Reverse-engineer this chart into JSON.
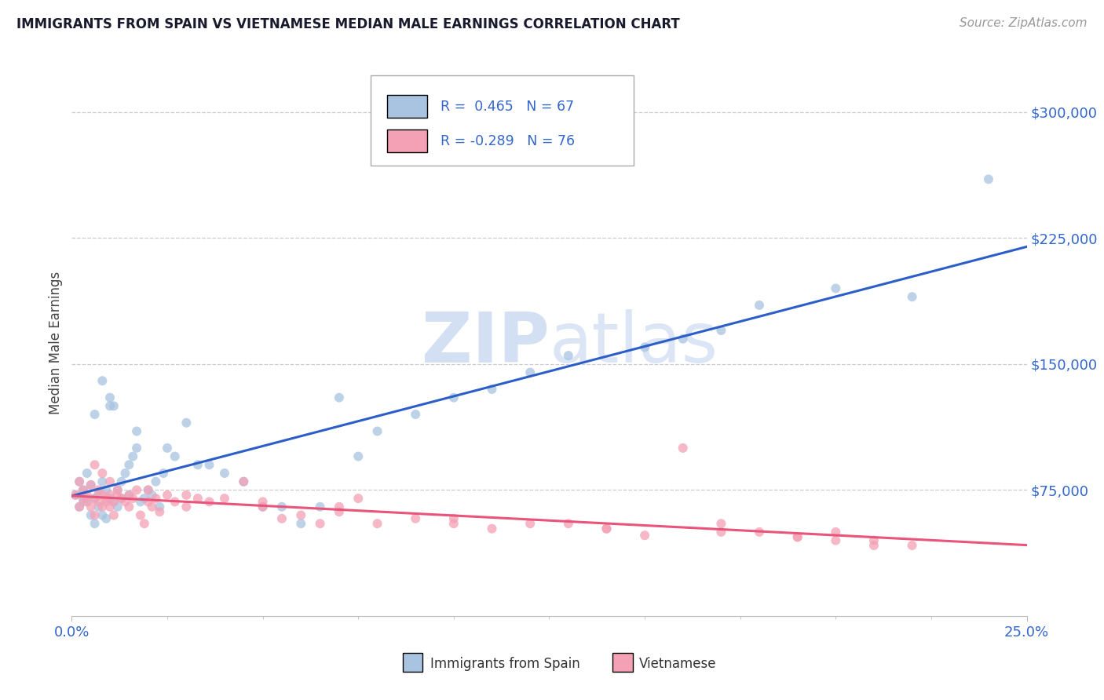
{
  "title": "IMMIGRANTS FROM SPAIN VS VIETNAMESE MEDIAN MALE EARNINGS CORRELATION CHART",
  "source": "Source: ZipAtlas.com",
  "ylabel": "Median Male Earnings",
  "xlim_min": 0.0,
  "xlim_max": 0.25,
  "ylim_min": 0,
  "ylim_max": 325000,
  "yticks": [
    75000,
    150000,
    225000,
    300000
  ],
  "ytick_labels": [
    "$75,000",
    "$150,000",
    "$225,000",
    "$300,000"
  ],
  "blue_R": 0.465,
  "blue_N": 67,
  "pink_R": -0.289,
  "pink_N": 76,
  "blue_color": "#A8C4E0",
  "pink_color": "#F4A0B5",
  "blue_line_color": "#2B5FC7",
  "pink_line_color": "#E8547A",
  "axis_label_color": "#3366CC",
  "title_color": "#1a1a2e",
  "watermark_text": "ZIPatlas",
  "blue_label": "Immigrants from Spain",
  "pink_label": "Vietnamese",
  "blue_x": [
    0.001,
    0.002,
    0.002,
    0.003,
    0.003,
    0.004,
    0.004,
    0.005,
    0.005,
    0.006,
    0.006,
    0.007,
    0.007,
    0.008,
    0.008,
    0.009,
    0.009,
    0.01,
    0.01,
    0.011,
    0.011,
    0.012,
    0.012,
    0.013,
    0.013,
    0.014,
    0.015,
    0.015,
    0.016,
    0.017,
    0.018,
    0.019,
    0.02,
    0.021,
    0.022,
    0.023,
    0.024,
    0.025,
    0.027,
    0.03,
    0.033,
    0.036,
    0.04,
    0.045,
    0.05,
    0.055,
    0.06,
    0.065,
    0.07,
    0.075,
    0.08,
    0.09,
    0.1,
    0.11,
    0.12,
    0.13,
    0.15,
    0.16,
    0.17,
    0.18,
    0.2,
    0.22,
    0.24,
    0.006,
    0.008,
    0.01,
    0.017
  ],
  "blue_y": [
    72000,
    65000,
    80000,
    68000,
    75000,
    70000,
    85000,
    60000,
    78000,
    55000,
    70000,
    65000,
    72000,
    60000,
    80000,
    58000,
    75000,
    130000,
    70000,
    125000,
    68000,
    75000,
    65000,
    80000,
    70000,
    85000,
    90000,
    72000,
    95000,
    100000,
    68000,
    70000,
    75000,
    72000,
    80000,
    65000,
    85000,
    100000,
    95000,
    115000,
    90000,
    90000,
    85000,
    80000,
    65000,
    65000,
    55000,
    65000,
    130000,
    95000,
    110000,
    120000,
    130000,
    135000,
    145000,
    155000,
    160000,
    165000,
    170000,
    185000,
    195000,
    190000,
    260000,
    120000,
    140000,
    125000,
    110000
  ],
  "pink_x": [
    0.001,
    0.002,
    0.002,
    0.003,
    0.003,
    0.004,
    0.004,
    0.005,
    0.005,
    0.006,
    0.006,
    0.007,
    0.007,
    0.008,
    0.008,
    0.009,
    0.009,
    0.01,
    0.01,
    0.011,
    0.011,
    0.012,
    0.012,
    0.013,
    0.014,
    0.015,
    0.015,
    0.016,
    0.017,
    0.018,
    0.019,
    0.02,
    0.021,
    0.022,
    0.023,
    0.025,
    0.027,
    0.03,
    0.033,
    0.036,
    0.04,
    0.045,
    0.05,
    0.055,
    0.06,
    0.065,
    0.07,
    0.075,
    0.08,
    0.09,
    0.1,
    0.11,
    0.12,
    0.13,
    0.14,
    0.15,
    0.16,
    0.17,
    0.18,
    0.19,
    0.2,
    0.21,
    0.22,
    0.006,
    0.008,
    0.01,
    0.02,
    0.03,
    0.05,
    0.07,
    0.1,
    0.14,
    0.17,
    0.19,
    0.2,
    0.21
  ],
  "pink_y": [
    72000,
    80000,
    65000,
    70000,
    75000,
    68000,
    72000,
    65000,
    78000,
    70000,
    60000,
    68000,
    75000,
    72000,
    65000,
    68000,
    70000,
    65000,
    72000,
    60000,
    68000,
    72000,
    75000,
    70000,
    68000,
    65000,
    72000,
    70000,
    75000,
    60000,
    55000,
    68000,
    65000,
    70000,
    62000,
    72000,
    68000,
    65000,
    70000,
    68000,
    70000,
    80000,
    65000,
    58000,
    60000,
    55000,
    65000,
    70000,
    55000,
    58000,
    55000,
    52000,
    55000,
    55000,
    52000,
    48000,
    100000,
    55000,
    50000,
    47000,
    50000,
    45000,
    42000,
    90000,
    85000,
    80000,
    75000,
    72000,
    68000,
    62000,
    58000,
    52000,
    50000,
    47000,
    45000,
    42000
  ]
}
